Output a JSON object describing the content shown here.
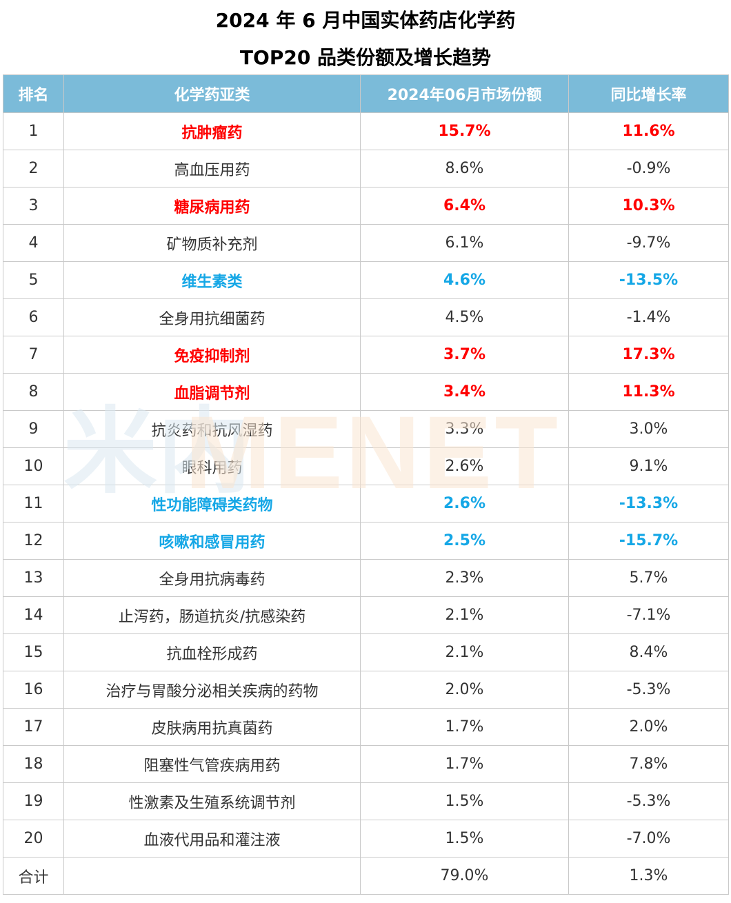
{
  "title_line1": "2024 年 6 月中国实体药店化学药",
  "title_line2": "TOP20 品类份额及增长趋势",
  "watermark": {
    "cn": "米内",
    "en": "MENET"
  },
  "colors": {
    "header_bg": "#7bbbd9",
    "highlight_red": "#ff0000",
    "highlight_blue": "#15a7e6"
  },
  "chart_data": {
    "type": "table",
    "columns": [
      "排名",
      "化学药亚类",
      "2024年06月市场份额",
      "同比增长率"
    ],
    "rows": [
      {
        "rank": "1",
        "category": "抗肿瘤药",
        "share": "15.7%",
        "growth": "11.6%",
        "highlight": "red"
      },
      {
        "rank": "2",
        "category": "高血压用药",
        "share": "8.6%",
        "growth": "-0.9%",
        "highlight": ""
      },
      {
        "rank": "3",
        "category": "糖尿病用药",
        "share": "6.4%",
        "growth": "10.3%",
        "highlight": "red"
      },
      {
        "rank": "4",
        "category": "矿物质补充剂",
        "share": "6.1%",
        "growth": "-9.7%",
        "highlight": ""
      },
      {
        "rank": "5",
        "category": "维生素类",
        "share": "4.6%",
        "growth": "-13.5%",
        "highlight": "blue"
      },
      {
        "rank": "6",
        "category": "全身用抗细菌药",
        "share": "4.5%",
        "growth": "-1.4%",
        "highlight": ""
      },
      {
        "rank": "7",
        "category": "免疫抑制剂",
        "share": "3.7%",
        "growth": "17.3%",
        "highlight": "red"
      },
      {
        "rank": "8",
        "category": "血脂调节剂",
        "share": "3.4%",
        "growth": "11.3%",
        "highlight": "red"
      },
      {
        "rank": "9",
        "category": "抗炎药和抗风湿药",
        "share": "3.3%",
        "growth": "3.0%",
        "highlight": ""
      },
      {
        "rank": "10",
        "category": "眼科用药",
        "share": "2.6%",
        "growth": "9.1%",
        "highlight": ""
      },
      {
        "rank": "11",
        "category": "性功能障碍类药物",
        "share": "2.6%",
        "growth": "-13.3%",
        "highlight": "blue"
      },
      {
        "rank": "12",
        "category": "咳嗽和感冒用药",
        "share": "2.5%",
        "growth": "-15.7%",
        "highlight": "blue"
      },
      {
        "rank": "13",
        "category": "全身用抗病毒药",
        "share": "2.3%",
        "growth": "5.7%",
        "highlight": ""
      },
      {
        "rank": "14",
        "category": "止泻药，肠道抗炎/抗感染药",
        "share": "2.1%",
        "growth": "-7.1%",
        "highlight": ""
      },
      {
        "rank": "15",
        "category": "抗血栓形成药",
        "share": "2.1%",
        "growth": "8.4%",
        "highlight": ""
      },
      {
        "rank": "16",
        "category": "治疗与胃酸分泌相关疾病的药物",
        "share": "2.0%",
        "growth": "-5.3%",
        "highlight": ""
      },
      {
        "rank": "17",
        "category": "皮肤病用抗真菌药",
        "share": "1.7%",
        "growth": "2.0%",
        "highlight": ""
      },
      {
        "rank": "18",
        "category": "阻塞性气管疾病用药",
        "share": "1.7%",
        "growth": "7.8%",
        "highlight": ""
      },
      {
        "rank": "19",
        "category": "性激素及生殖系统调节剂",
        "share": "1.5%",
        "growth": "-5.3%",
        "highlight": ""
      },
      {
        "rank": "20",
        "category": "血液代用品和灌注液",
        "share": "1.5%",
        "growth": "-7.0%",
        "highlight": ""
      }
    ],
    "total": {
      "label": "合计",
      "category": "",
      "share": "79.0%",
      "growth": "1.3%"
    }
  }
}
